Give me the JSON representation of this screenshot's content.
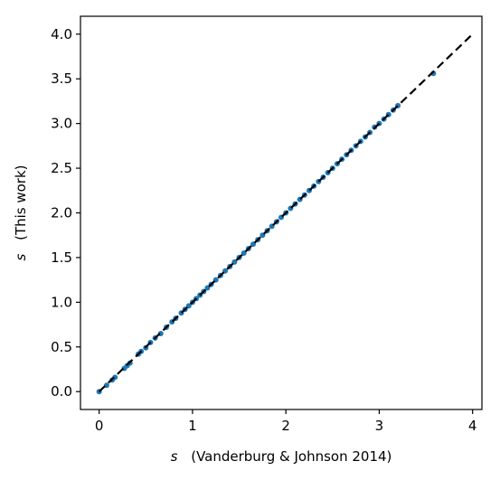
{
  "chart_data": {
    "type": "scatter",
    "xlabel": {
      "symbol": "s",
      "text": "(Vanderburg & Johnson 2014)"
    },
    "ylabel": {
      "symbol": "s",
      "text": "(This work)"
    },
    "xlim": [
      -0.2,
      4.1
    ],
    "ylim": [
      -0.2,
      4.2
    ],
    "xticks": [
      0,
      1,
      2,
      3,
      4
    ],
    "xtick_labels": [
      "0",
      "1",
      "2",
      "3",
      "4"
    ],
    "yticks": [
      0.0,
      0.5,
      1.0,
      1.5,
      2.0,
      2.5,
      3.0,
      3.5,
      4.0
    ],
    "ytick_labels": [
      "0.0",
      "0.5",
      "1.0",
      "1.5",
      "2.0",
      "2.5",
      "3.0",
      "3.5",
      "4.0"
    ],
    "grid": false,
    "reference_line": {
      "style": "dashed",
      "color": "#000000",
      "x": [
        0,
        4
      ],
      "y": [
        0,
        4
      ]
    },
    "series": [
      {
        "color": "#1f77b4",
        "points": [
          [
            0.0,
            0.0
          ],
          [
            0.08,
            0.07
          ],
          [
            0.14,
            0.13
          ],
          [
            0.17,
            0.16
          ],
          [
            0.27,
            0.26
          ],
          [
            0.3,
            0.29
          ],
          [
            0.33,
            0.32
          ],
          [
            0.42,
            0.42
          ],
          [
            0.45,
            0.45
          ],
          [
            0.5,
            0.49
          ],
          [
            0.55,
            0.55
          ],
          [
            0.6,
            0.6
          ],
          [
            0.66,
            0.65
          ],
          [
            0.72,
            0.72
          ],
          [
            0.78,
            0.78
          ],
          [
            0.82,
            0.82
          ],
          [
            0.88,
            0.88
          ],
          [
            0.92,
            0.92
          ],
          [
            0.96,
            0.96
          ],
          [
            1.0,
            1.0
          ],
          [
            1.04,
            1.04
          ],
          [
            1.08,
            1.08
          ],
          [
            1.12,
            1.12
          ],
          [
            1.16,
            1.16
          ],
          [
            1.2,
            1.2
          ],
          [
            1.25,
            1.25
          ],
          [
            1.3,
            1.3
          ],
          [
            1.35,
            1.35
          ],
          [
            1.4,
            1.4
          ],
          [
            1.45,
            1.45
          ],
          [
            1.5,
            1.5
          ],
          [
            1.55,
            1.55
          ],
          [
            1.6,
            1.6
          ],
          [
            1.65,
            1.65
          ],
          [
            1.7,
            1.7
          ],
          [
            1.75,
            1.75
          ],
          [
            1.8,
            1.8
          ],
          [
            1.85,
            1.85
          ],
          [
            1.9,
            1.9
          ],
          [
            1.95,
            1.95
          ],
          [
            2.0,
            2.0
          ],
          [
            2.05,
            2.05
          ],
          [
            2.1,
            2.1
          ],
          [
            2.15,
            2.15
          ],
          [
            2.2,
            2.2
          ],
          [
            2.25,
            2.25
          ],
          [
            2.3,
            2.3
          ],
          [
            2.35,
            2.35
          ],
          [
            2.4,
            2.4
          ],
          [
            2.45,
            2.45
          ],
          [
            2.5,
            2.5
          ],
          [
            2.55,
            2.55
          ],
          [
            2.6,
            2.6
          ],
          [
            2.65,
            2.65
          ],
          [
            2.7,
            2.7
          ],
          [
            2.75,
            2.75
          ],
          [
            2.8,
            2.8
          ],
          [
            2.85,
            2.85
          ],
          [
            2.9,
            2.9
          ],
          [
            2.95,
            2.96
          ],
          [
            3.0,
            3.0
          ],
          [
            3.05,
            3.05
          ],
          [
            3.1,
            3.1
          ],
          [
            3.15,
            3.15
          ],
          [
            3.2,
            3.2
          ],
          [
            3.58,
            3.56
          ]
        ]
      }
    ]
  }
}
